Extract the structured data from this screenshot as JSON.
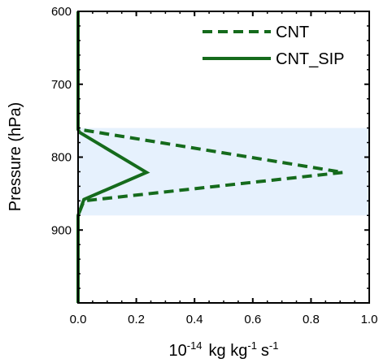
{
  "chart_data": {
    "type": "line",
    "title": "",
    "xlabel": {
      "prefix": "10",
      "prefix_exp": "-14",
      "parts": [
        {
          "text": "kg kg",
          "sup": "-1"
        },
        {
          "text": "s",
          "sup": "-1"
        }
      ]
    },
    "ylabel": "Pressure (hPa)",
    "xlim": [
      0.0,
      1.0
    ],
    "ylim": [
      600,
      1000
    ],
    "y_inverted": true,
    "xticks": [
      0.0,
      0.2,
      0.4,
      0.6,
      0.8,
      1.0
    ],
    "xtick_labels": [
      "0.0",
      "0.2",
      "0.4",
      "0.6",
      "0.8",
      "1.0"
    ],
    "yticks": [
      600,
      700,
      800,
      900
    ],
    "ytick_labels": [
      "600",
      "700",
      "800",
      "900"
    ],
    "grid": false,
    "legend_position": "top-right",
    "shaded_band": {
      "y_from": 760,
      "y_to": 880,
      "color": "#e6f1fd"
    },
    "series": [
      {
        "name": "CNT",
        "style": "dashed",
        "color": "#156b1c",
        "points": [
          [
            0.0,
            600
          ],
          [
            0.0,
            760
          ],
          [
            0.005,
            762
          ],
          [
            0.91,
            821
          ],
          [
            0.02,
            860
          ],
          [
            0.0,
            880
          ],
          [
            0.0,
            1000
          ]
        ]
      },
      {
        "name": "CNT_SIP",
        "style": "solid",
        "color": "#156b1c",
        "points": [
          [
            0.0,
            600
          ],
          [
            0.0,
            762
          ],
          [
            0.005,
            766
          ],
          [
            0.235,
            821
          ],
          [
            0.02,
            858
          ],
          [
            0.0,
            880
          ],
          [
            0.0,
            1000
          ]
        ]
      }
    ]
  }
}
